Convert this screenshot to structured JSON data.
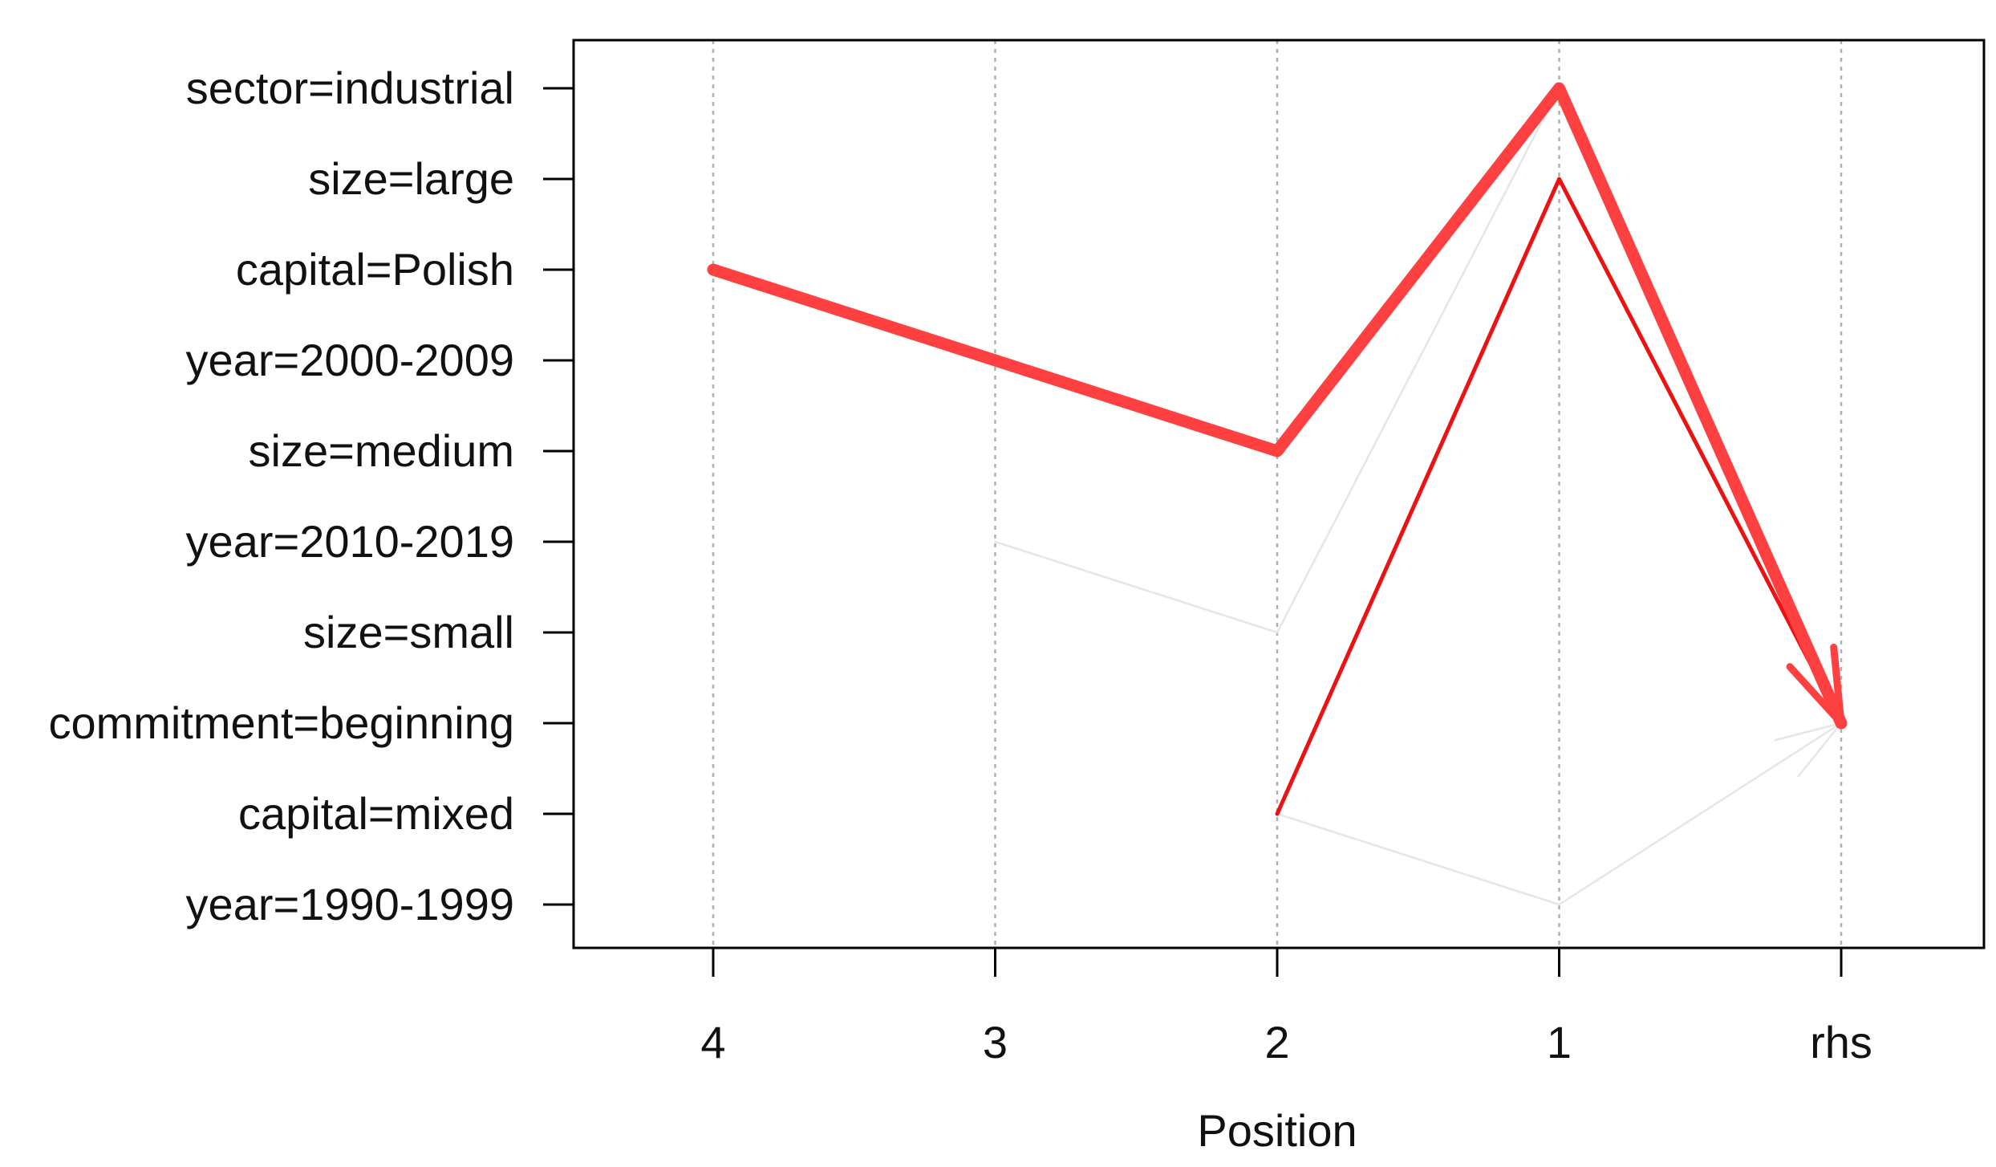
{
  "chart_data": {
    "type": "parallel-coordinates",
    "xlabel": "Position",
    "x_categories": [
      "4",
      "3",
      "2",
      "1",
      "rhs"
    ],
    "y_categories": [
      "sector=industrial",
      "size=large",
      "capital=Polish",
      "year=2000-2009",
      "size=medium",
      "year=2010-2019",
      "size=small",
      "commitment=beginning",
      "capital=mixed",
      "year=1990-1999"
    ],
    "grid": "vertical dotted",
    "rules": [
      {
        "path": [
          [
            "4",
            "capital=Polish"
          ],
          [
            "3",
            "year=2000-2009"
          ],
          [
            "2",
            "size=medium"
          ],
          [
            "1",
            "sector=industrial"
          ],
          [
            "rhs",
            "commitment=beginning"
          ]
        ],
        "weight": "thick",
        "color": "#ff4040",
        "arrow": true
      },
      {
        "path": [
          [
            "2",
            "capital=mixed"
          ],
          [
            "1",
            "size=large"
          ],
          [
            "rhs",
            "commitment=beginning"
          ]
        ],
        "weight": "medium",
        "color": "#ee1111",
        "arrow": false
      },
      {
        "path": [
          [
            "3",
            "year=2010-2019"
          ],
          [
            "2",
            "size=small"
          ],
          [
            "1",
            "sector=industrial"
          ]
        ],
        "weight": "thin",
        "color": "#e6e6e6",
        "arrow": false
      },
      {
        "path": [
          [
            "2",
            "capital=mixed"
          ],
          [
            "1",
            "year=1990-1999"
          ],
          [
            "rhs",
            "commitment=beginning"
          ]
        ],
        "weight": "thin",
        "color": "#e6e6e6",
        "arrow": true
      }
    ]
  }
}
